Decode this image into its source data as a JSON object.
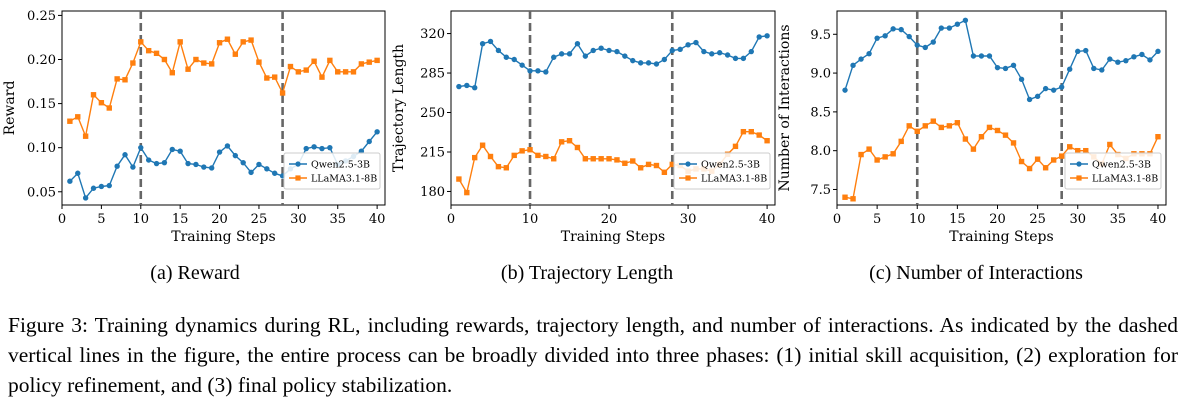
{
  "chart_data": [
    {
      "type": "line",
      "subcaption": "(a) Reward",
      "xlabel": "Training Steps",
      "ylabel": "Reward",
      "xlim": [
        0,
        41
      ],
      "ylim": [
        0.035,
        0.255
      ],
      "xticks": [
        0,
        5,
        10,
        15,
        20,
        25,
        30,
        35,
        40
      ],
      "yticks": [
        0.05,
        0.1,
        0.15,
        0.2,
        0.25
      ],
      "ytick_labels": [
        "0.05",
        "0.10",
        "0.15",
        "0.20",
        "0.25"
      ],
      "vlines": [
        10,
        28
      ],
      "legend": "right",
      "x": [
        1,
        2,
        3,
        4,
        5,
        6,
        7,
        8,
        9,
        10,
        11,
        12,
        13,
        14,
        15,
        16,
        17,
        18,
        19,
        20,
        21,
        22,
        23,
        24,
        25,
        26,
        27,
        28,
        29,
        30,
        31,
        32,
        33,
        34,
        35,
        36,
        37,
        38,
        39,
        40
      ],
      "series": [
        {
          "name": "Qwen2.5-3B",
          "color": "#1f77b4",
          "marker": "circle",
          "values": [
            0.062,
            0.071,
            0.043,
            0.054,
            0.056,
            0.057,
            0.079,
            0.092,
            0.078,
            0.1,
            0.086,
            0.082,
            0.083,
            0.098,
            0.096,
            0.082,
            0.081,
            0.078,
            0.077,
            0.095,
            0.102,
            0.091,
            0.083,
            0.072,
            0.081,
            0.076,
            0.071,
            0.068,
            0.076,
            0.081,
            0.099,
            0.101,
            0.099,
            0.1,
            0.081,
            0.085,
            0.09,
            0.096,
            0.107,
            0.118
          ]
        },
        {
          "name": "LLaMA3.1-8B",
          "color": "#ff7f0e",
          "marker": "square",
          "values": [
            0.13,
            0.135,
            0.113,
            0.16,
            0.151,
            0.145,
            0.178,
            0.177,
            0.196,
            0.22,
            0.21,
            0.207,
            0.2,
            0.185,
            0.22,
            0.189,
            0.2,
            0.196,
            0.195,
            0.219,
            0.223,
            0.206,
            0.22,
            0.222,
            0.197,
            0.179,
            0.18,
            0.162,
            0.192,
            0.186,
            0.188,
            0.198,
            0.18,
            0.199,
            0.186,
            0.186,
            0.186,
            0.195,
            0.197,
            0.199
          ]
        }
      ]
    },
    {
      "type": "line",
      "subcaption": "(b) Trajectory Length",
      "xlabel": "Training Steps",
      "ylabel": "Trajectory Length",
      "xlim": [
        0,
        41
      ],
      "ylim": [
        168,
        340
      ],
      "xticks": [
        0,
        10,
        20,
        30,
        40
      ],
      "yticks": [
        180,
        215,
        250,
        285,
        320
      ],
      "ytick_labels": [
        "180",
        "215",
        "250",
        "285",
        "320"
      ],
      "vlines": [
        10,
        28
      ],
      "legend": "right",
      "x": [
        1,
        2,
        3,
        4,
        5,
        6,
        7,
        8,
        9,
        10,
        11,
        12,
        13,
        14,
        15,
        16,
        17,
        18,
        19,
        20,
        21,
        22,
        23,
        24,
        25,
        26,
        27,
        28,
        29,
        30,
        31,
        32,
        33,
        34,
        35,
        36,
        37,
        38,
        39,
        40
      ],
      "series": [
        {
          "name": "Qwen2.5-3B",
          "color": "#1f77b4",
          "marker": "circle",
          "values": [
            273,
            274,
            272,
            311,
            313,
            305,
            299,
            297,
            292,
            287,
            287,
            286,
            299,
            302,
            302,
            311,
            300,
            305,
            307,
            305,
            304,
            300,
            296,
            294,
            294,
            293,
            297,
            305,
            306,
            310,
            312,
            304,
            302,
            303,
            301,
            298,
            298,
            304,
            317,
            318
          ]
        },
        {
          "name": "LLaMA3.1-8B",
          "color": "#ff7f0e",
          "marker": "square",
          "values": [
            191,
            179,
            210,
            221,
            211,
            202,
            201,
            212,
            216,
            217,
            212,
            211,
            209,
            224,
            225,
            219,
            209,
            209,
            209,
            209,
            208,
            205,
            207,
            201,
            204,
            203,
            197,
            204,
            203,
            198,
            200,
            200,
            198,
            204,
            213,
            220,
            233,
            233,
            230,
            225
          ]
        }
      ]
    },
    {
      "type": "line",
      "subcaption": "(c) Number of Interactions",
      "xlabel": "Training Steps",
      "ylabel": "Number of Interactions",
      "xlim": [
        0,
        41
      ],
      "ylim": [
        7.3,
        9.8
      ],
      "xticks": [
        0,
        5,
        10,
        15,
        20,
        25,
        30,
        35,
        40
      ],
      "yticks": [
        7.5,
        8.0,
        8.5,
        9.0,
        9.5
      ],
      "ytick_labels": [
        "7.5",
        "8.0",
        "8.5",
        "9.0",
        "9.5"
      ],
      "vlines": [
        10,
        28
      ],
      "legend": "right",
      "x": [
        1,
        2,
        3,
        4,
        5,
        6,
        7,
        8,
        9,
        10,
        11,
        12,
        13,
        14,
        15,
        16,
        17,
        18,
        19,
        20,
        21,
        22,
        23,
        24,
        25,
        26,
        27,
        28,
        29,
        30,
        31,
        32,
        33,
        34,
        35,
        36,
        37,
        38,
        39,
        40
      ],
      "series": [
        {
          "name": "Qwen2.5-3B",
          "color": "#1f77b4",
          "marker": "circle",
          "values": [
            8.78,
            9.1,
            9.18,
            9.25,
            9.45,
            9.48,
            9.57,
            9.56,
            9.47,
            9.36,
            9.33,
            9.4,
            9.58,
            9.58,
            9.63,
            9.68,
            9.22,
            9.22,
            9.22,
            9.07,
            9.06,
            9.1,
            8.92,
            8.66,
            8.7,
            8.8,
            8.78,
            8.82,
            9.05,
            9.28,
            9.29,
            9.06,
            9.04,
            9.18,
            9.14,
            9.16,
            9.21,
            9.24,
            9.17,
            9.28
          ]
        },
        {
          "name": "LLaMA3.1-8B",
          "color": "#ff7f0e",
          "marker": "square",
          "values": [
            7.4,
            7.38,
            7.95,
            8.02,
            7.88,
            7.92,
            7.96,
            8.12,
            8.32,
            8.25,
            8.32,
            8.38,
            8.3,
            8.32,
            8.36,
            8.15,
            8.02,
            8.18,
            8.3,
            8.26,
            8.2,
            8.1,
            7.86,
            7.77,
            7.89,
            7.78,
            7.88,
            7.93,
            8.05,
            8.0,
            8.0,
            7.92,
            7.83,
            8.08,
            7.95,
            7.9,
            7.96,
            7.96,
            7.96,
            8.18
          ]
        }
      ]
    }
  ],
  "caption": "Figure 3: Training dynamics during RL, including rewards, trajectory length, and number of interactions. As indicated by the dashed vertical lines in the figure, the entire process can be broadly divided into three phases: (1) initial skill acquisition, (2) exploration for policy refinement, and (3) final policy stabilization."
}
